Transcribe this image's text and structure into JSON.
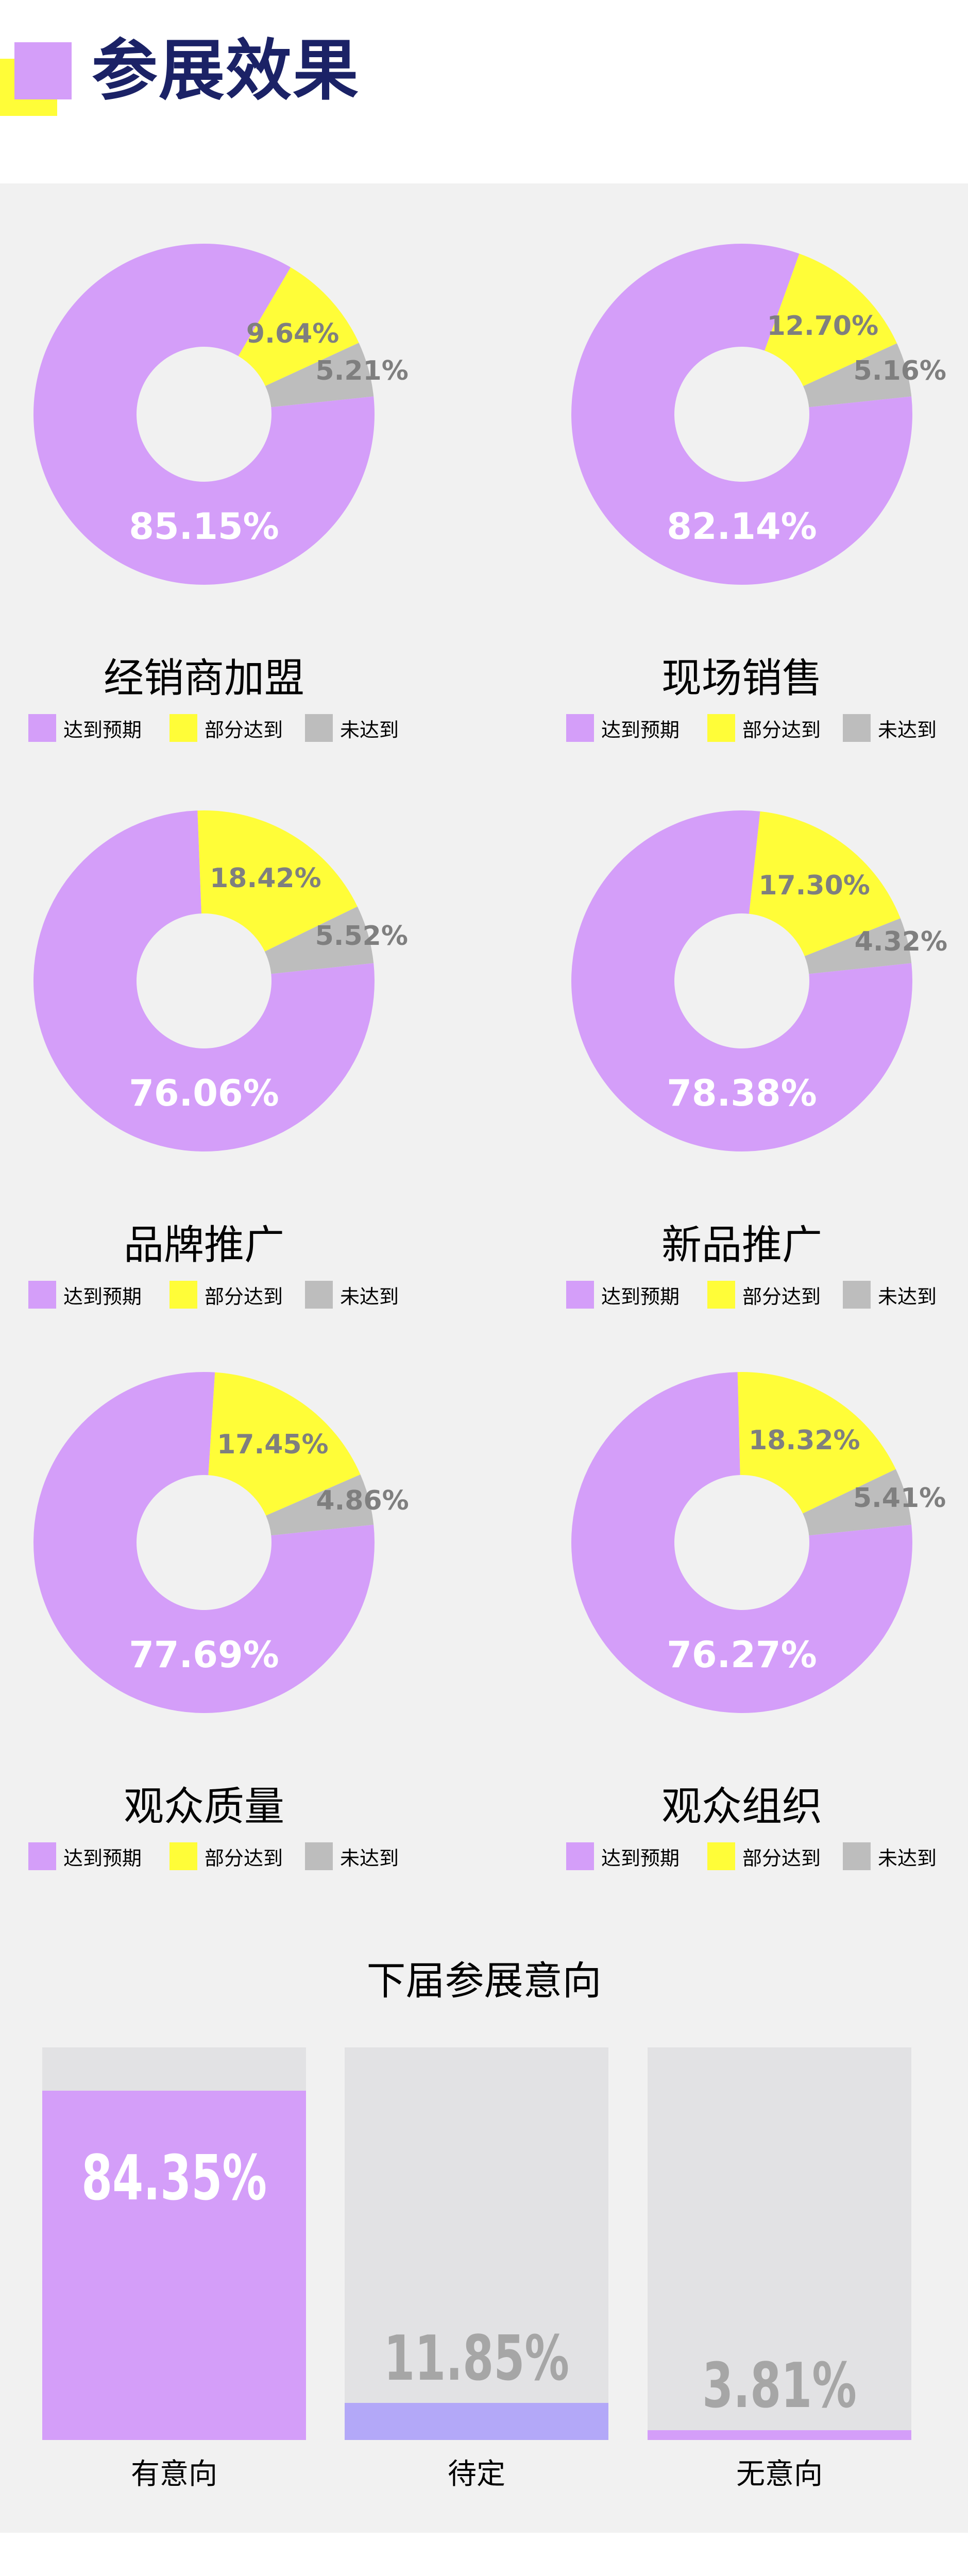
{
  "header": {
    "title": "参展效果"
  },
  "colors": {
    "reached": "#d49ef9",
    "partial": "#fffd38",
    "not_reached": "#bdbdbd",
    "pending": "#b3a8f8",
    "track": "#e2e2e4",
    "title": "#1b2266"
  },
  "legend": [
    "达到预期",
    "部分达到",
    "未达到"
  ],
  "chart_data": [
    {
      "type": "pie",
      "title": "经销商加盟",
      "categories": [
        "达到预期",
        "部分达到",
        "未达到"
      ],
      "values": [
        85.15,
        9.64,
        5.21
      ],
      "labels": [
        "85.15%",
        "9.64%",
        "5.21%"
      ]
    },
    {
      "type": "pie",
      "title": "现场销售",
      "categories": [
        "达到预期",
        "部分达到",
        "未达到"
      ],
      "values": [
        82.14,
        12.7,
        5.16
      ],
      "labels": [
        "82.14%",
        "12.70%",
        "5.16%"
      ]
    },
    {
      "type": "pie",
      "title": "品牌推广",
      "categories": [
        "达到预期",
        "部分达到",
        "未达到"
      ],
      "values": [
        76.06,
        18.42,
        5.52
      ],
      "labels": [
        "76.06%",
        "18.42%",
        "5.52%"
      ]
    },
    {
      "type": "pie",
      "title": "新品推广",
      "categories": [
        "达到预期",
        "部分达到",
        "未达到"
      ],
      "values": [
        78.38,
        17.3,
        4.32
      ],
      "labels": [
        "78.38%",
        "17.30%",
        "4.32%"
      ]
    },
    {
      "type": "pie",
      "title": "观众质量",
      "categories": [
        "达到预期",
        "部分达到",
        "未达到"
      ],
      "values": [
        77.69,
        17.45,
        4.86
      ],
      "labels": [
        "77.69%",
        "17.45%",
        "4.86%"
      ]
    },
    {
      "type": "pie",
      "title": "观众组织",
      "categories": [
        "达到预期",
        "部分达到",
        "未达到"
      ],
      "values": [
        76.27,
        18.32,
        5.41
      ],
      "labels": [
        "76.27%",
        "18.32%",
        "5.41%"
      ]
    },
    {
      "type": "bar",
      "title": "下届参展意向",
      "categories": [
        "有意向",
        "待定",
        "无意向"
      ],
      "values": [
        84.35,
        11.85,
        3.81
      ],
      "labels": [
        "84.35%",
        "11.85%",
        "3.81%"
      ]
    }
  ]
}
